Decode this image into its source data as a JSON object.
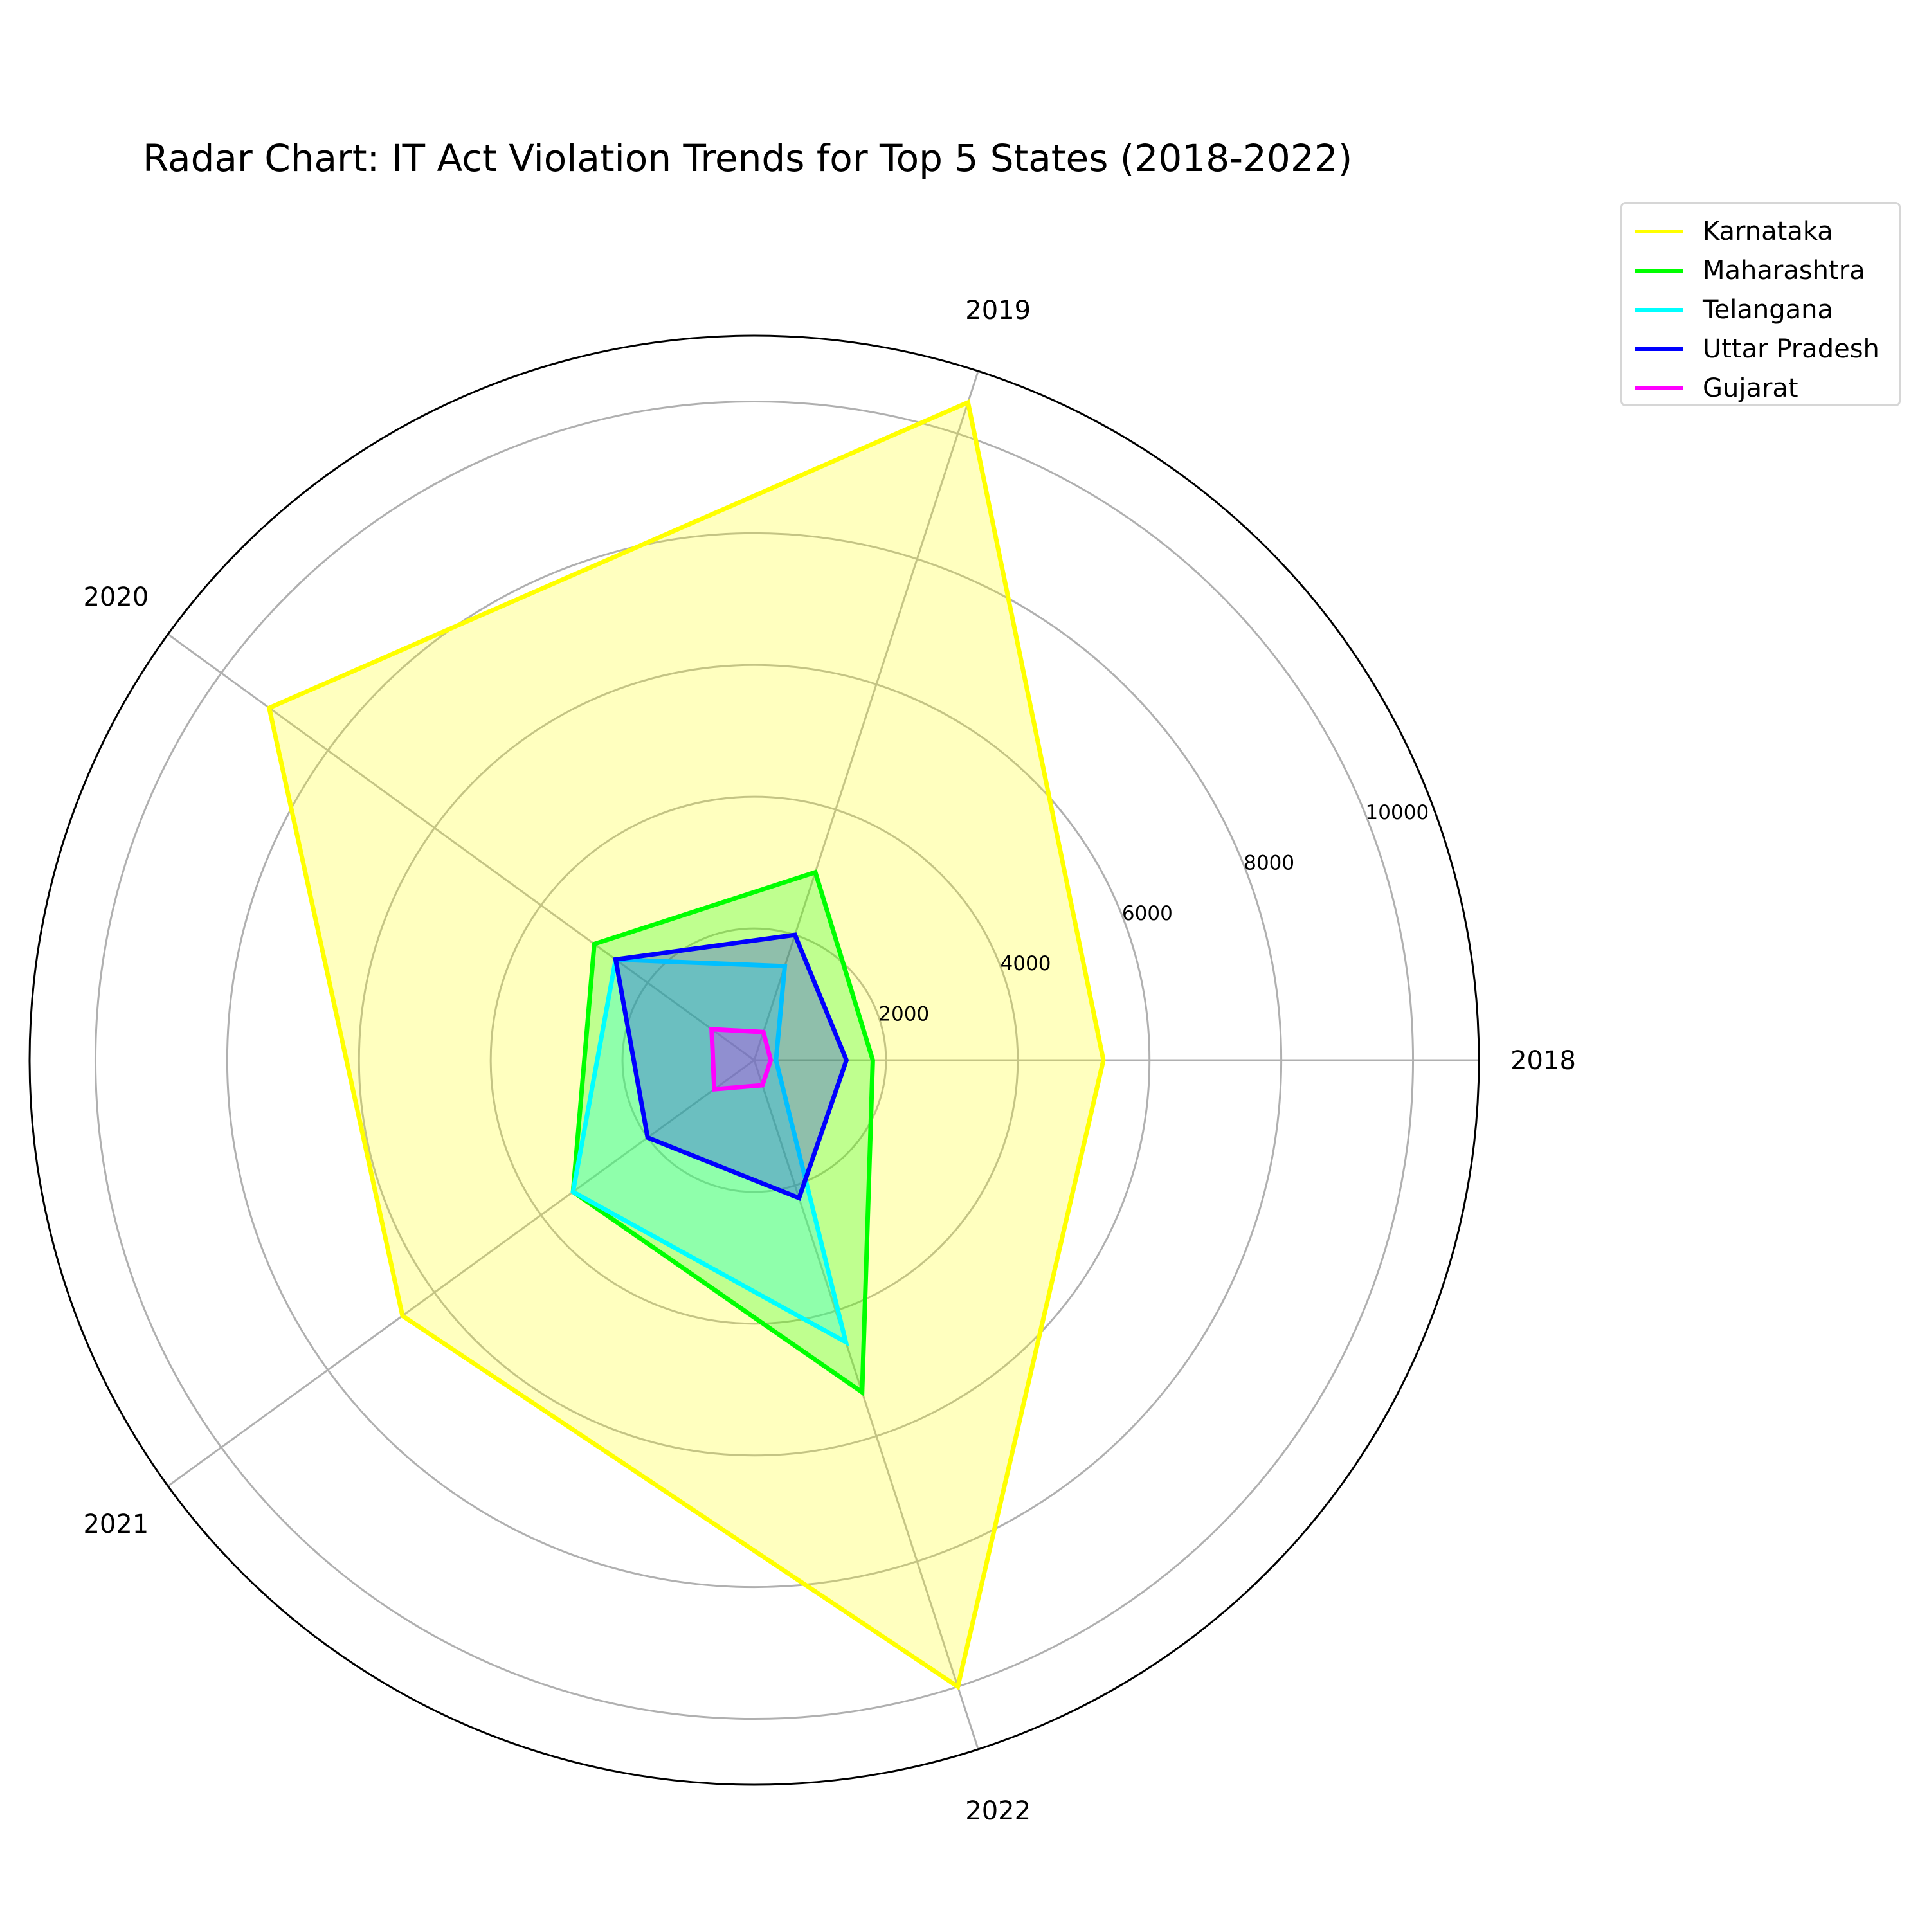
{
  "chart_data": {
    "type": "radar",
    "title": "Radar Chart: IT Act Violation Trends for Top 5 States (2018-2022)",
    "categories": [
      "2018",
      "2019",
      "2020",
      "2021",
      "2022"
    ],
    "radial_ticks": [
      2000,
      4000,
      6000,
      8000,
      10000
    ],
    "rlim": [
      0,
      11000
    ],
    "grid": true,
    "legend_position": "upper-right-outside",
    "series": [
      {
        "name": "Karnataka",
        "color": "#ffff00",
        "values": [
          5300,
          10500,
          9100,
          6600,
          10000
        ]
      },
      {
        "name": "Maharashtra",
        "color": "#00ff00",
        "values": [
          1800,
          3000,
          3000,
          3400,
          5300
        ]
      },
      {
        "name": "Telangana",
        "color": "#00ffff",
        "values": [
          330,
          1500,
          2600,
          3400,
          4500
        ]
      },
      {
        "name": "Uttar Pradesh",
        "color": "#0000ff",
        "values": [
          1400,
          2000,
          2600,
          2000,
          2200
        ]
      },
      {
        "name": "Gujarat",
        "color": "#ff00ff",
        "values": [
          250,
          450,
          800,
          750,
          400
        ]
      }
    ]
  }
}
